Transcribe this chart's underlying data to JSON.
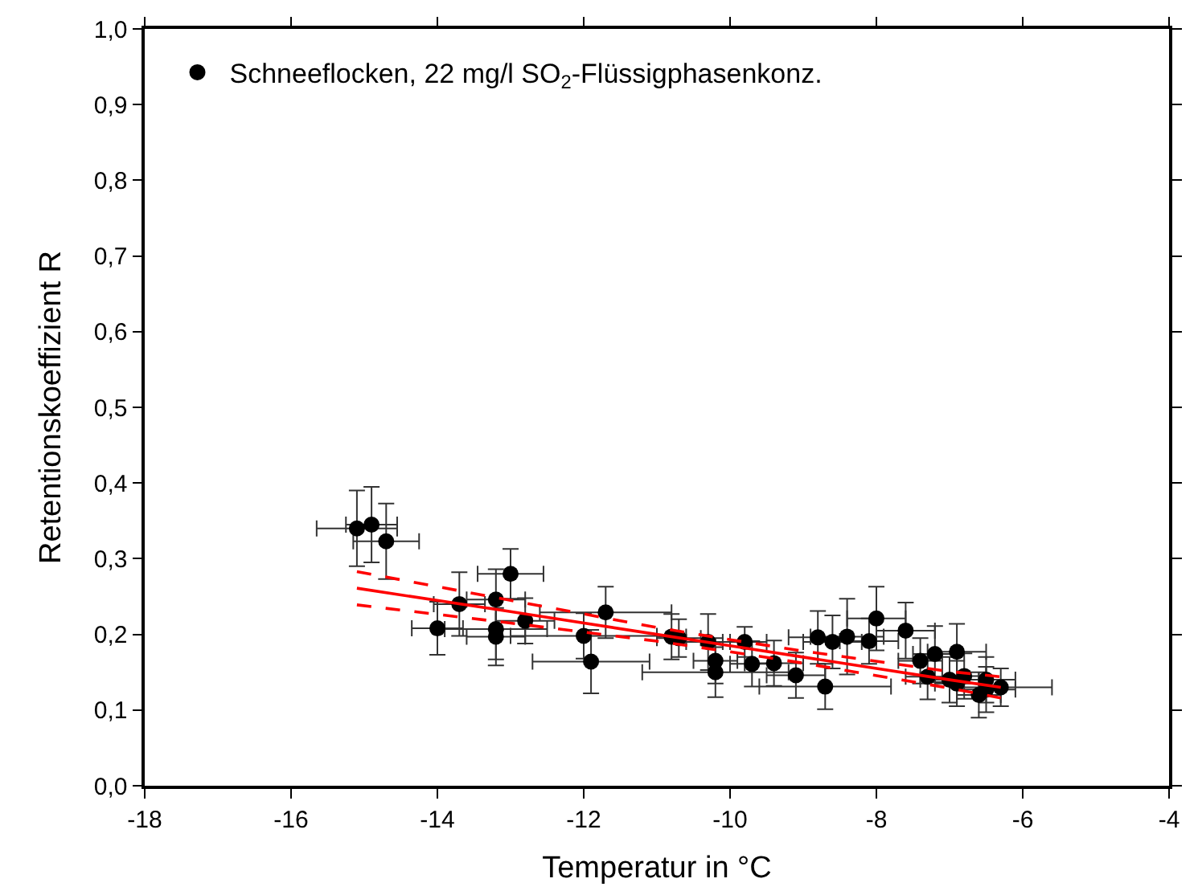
{
  "chart_data": {
    "type": "scatter",
    "xlabel": "Temperatur in °C",
    "ylabel": "Retentionskoeffizient R",
    "xlim": [
      -18,
      -4
    ],
    "xticks": [
      -18,
      -16,
      -14,
      -12,
      -10,
      -8,
      -6,
      -4
    ],
    "ylim": [
      0,
      1
    ],
    "yticks": [
      {
        "value": 0,
        "label": "0,0"
      },
      {
        "value": 0.1,
        "label": "0,1"
      },
      {
        "value": 0.2,
        "label": "0,2"
      },
      {
        "value": 0.3,
        "label": "0,3"
      },
      {
        "value": 0.4,
        "label": "0,4"
      },
      {
        "value": 0.5,
        "label": "0,5"
      },
      {
        "value": 0.6,
        "label": "0,6"
      },
      {
        "value": 0.7,
        "label": "0,7"
      },
      {
        "value": 0.8,
        "label": "0,8"
      },
      {
        "value": 0.9,
        "label": "0,9"
      },
      {
        "value": 1.0,
        "label": "1,0"
      }
    ],
    "legend": "top left",
    "marker": "circle",
    "series": [
      {
        "name": "Schneeflocken, 22 mg/l SO$_{2}$-Flüssigphasenkonz.",
        "color": "#000000",
        "x": [
          -15.1,
          -14.9,
          -14.7,
          -14.0,
          -13.7,
          -13.2,
          -13.2,
          -13.2,
          -13.0,
          -12.8,
          -12.0,
          -11.9,
          -11.7,
          -10.8,
          -10.7,
          -10.3,
          -10.2,
          -10.2,
          -9.8,
          -9.7,
          -9.4,
          -9.1,
          -8.8,
          -8.7,
          -8.6,
          -8.4,
          -8.1,
          -8.0,
          -7.6,
          -7.4,
          -7.3,
          -7.2,
          -7.0,
          -6.9,
          -6.9,
          -6.8,
          -6.6,
          -6.5,
          -6.5,
          -6.3
        ],
        "values": [
          0.34,
          0.345,
          0.323,
          0.208,
          0.24,
          0.246,
          0.207,
          0.197,
          0.28,
          0.218,
          0.198,
          0.164,
          0.229,
          0.197,
          0.195,
          0.19,
          0.165,
          0.15,
          0.19,
          0.161,
          0.162,
          0.146,
          0.196,
          0.131,
          0.19,
          0.197,
          0.191,
          0.221,
          0.205,
          0.165,
          0.144,
          0.174,
          0.14,
          0.177,
          0.135,
          0.145,
          0.12,
          0.14,
          0.127,
          0.13
        ],
        "errors": [
          0.05,
          0.05,
          0.05,
          0.035,
          0.042,
          0.04,
          0.04,
          0.038,
          0.033,
          0.03,
          0.03,
          0.042,
          0.034,
          0.03,
          0.025,
          0.037,
          0.03,
          0.033,
          0.02,
          0.03,
          0.03,
          0.03,
          0.035,
          0.03,
          0.035,
          0.05,
          0.03,
          0.042,
          0.037,
          0.03,
          0.03,
          0.037,
          0.03,
          0.037,
          0.03,
          0.03,
          0.03,
          0.03,
          0.03,
          0.025
        ],
        "xerrors": [
          0.55,
          0.35,
          0.45,
          0.35,
          0.35,
          0.4,
          0.7,
          0.4,
          0.45,
          0.4,
          1.0,
          0.8,
          0.9,
          0.2,
          0.3,
          0.3,
          0.3,
          1.0,
          0.3,
          0.3,
          0.4,
          0.4,
          0.4,
          0.9,
          0.4,
          0.5,
          0.4,
          0.4,
          0.4,
          0.3,
          0.3,
          0.3,
          0.4,
          0.4,
          0.3,
          0.3,
          0.3,
          0.4,
          0.4,
          0.7
        ]
      },
      {
        "type": "line",
        "color": "#ff0000",
        "line_style": "solid",
        "marker": "none",
        "x": [
          -15.1,
          -13,
          -11,
          -10,
          -9,
          -7,
          -6.3
        ],
        "values": [
          0.261,
          0.23,
          0.2,
          0.185,
          0.17,
          0.14,
          0.13
        ]
      },
      {
        "type": "line",
        "color": "#ff0000",
        "line_style": "dashed",
        "marker": "none",
        "x": [
          -15.1,
          -13,
          -11,
          -10,
          -9,
          -7,
          -6.3
        ],
        "values": [
          0.283,
          0.245,
          0.209,
          0.193,
          0.178,
          0.151,
          0.144
        ]
      },
      {
        "type": "line",
        "color": "#ff0000",
        "line_style": "dashed",
        "marker": "none",
        "x": [
          -15.1,
          -13,
          -11,
          -10,
          -9,
          -7,
          -6.3
        ],
        "values": [
          0.239,
          0.215,
          0.191,
          0.177,
          0.162,
          0.129,
          0.116
        ]
      }
    ]
  }
}
